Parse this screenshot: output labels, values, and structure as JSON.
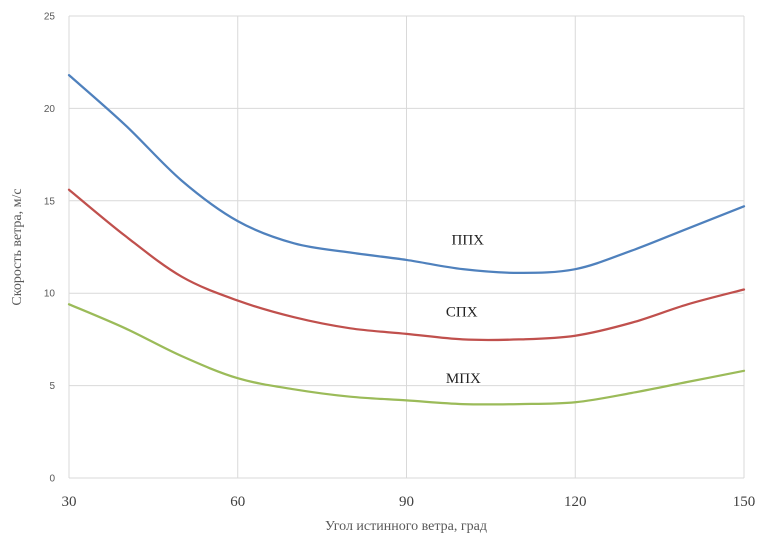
{
  "chart_data": {
    "type": "line",
    "title": "",
    "xlabel": "Угол истинного ветра, град",
    "ylabel": "Скорость ветра, м/с",
    "xlim": [
      30,
      150
    ],
    "ylim": [
      0,
      25
    ],
    "xticks": [
      30,
      60,
      90,
      120,
      150
    ],
    "yticks": [
      0,
      5,
      10,
      15,
      20,
      25
    ],
    "grid": true,
    "legend": "none",
    "x": [
      30,
      40,
      50,
      60,
      70,
      80,
      90,
      100,
      110,
      120,
      130,
      140,
      150
    ],
    "series": [
      {
        "name": "ППХ",
        "color": "#4F81BD",
        "label_at": [
          98,
          12.9
        ],
        "values": [
          21.8,
          19.1,
          16.1,
          13.9,
          12.7,
          12.2,
          11.8,
          11.3,
          11.1,
          11.3,
          12.3,
          13.5,
          14.7
        ]
      },
      {
        "name": "СПХ",
        "color": "#C0504D",
        "label_at": [
          97,
          9.0
        ],
        "values": [
          15.6,
          13.1,
          10.9,
          9.6,
          8.7,
          8.1,
          7.8,
          7.5,
          7.5,
          7.7,
          8.4,
          9.4,
          10.2
        ]
      },
      {
        "name": "МПХ",
        "color": "#9BBB59",
        "label_at": [
          97,
          5.4
        ],
        "values": [
          9.4,
          8.1,
          6.6,
          5.4,
          4.8,
          4.4,
          4.2,
          4.0,
          4.0,
          4.1,
          4.6,
          5.2,
          5.8
        ]
      }
    ]
  }
}
